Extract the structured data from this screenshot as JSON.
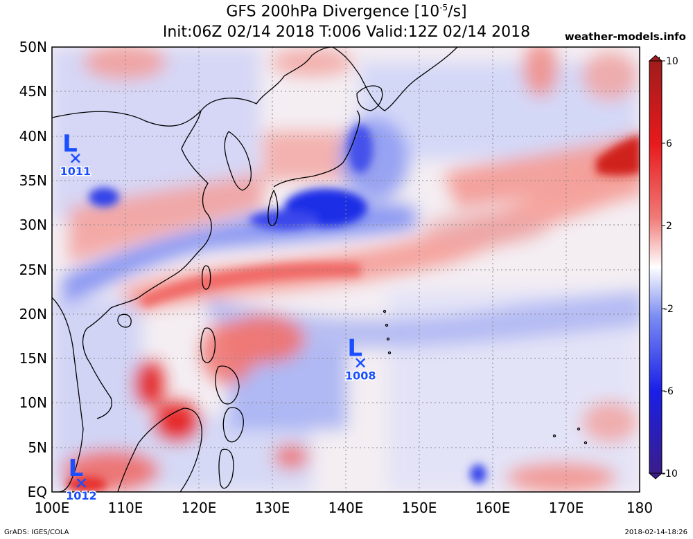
{
  "header": {
    "title_main": "GFS 200hPa Divergence [10",
    "title_exp": "-5",
    "title_unit": "/s]",
    "subtitle": "Init:06Z 02/14 2018 T:006 Valid:12Z 02/14 2018",
    "site": "weather-models.info"
  },
  "footer": {
    "credit": "GrADS: IGES/COLA",
    "timestamp": "2018-02-14-18:26"
  },
  "map": {
    "lon_labels": [
      "100E",
      "110E",
      "120E",
      "130E",
      "140E",
      "150E",
      "160E",
      "170E",
      "180"
    ],
    "lat_labels": [
      "50N",
      "45N",
      "40N",
      "35N",
      "30N",
      "25N",
      "20N",
      "15N",
      "10N",
      "5N",
      "EQ"
    ],
    "lows": [
      {
        "letter": "L",
        "pressure": "1011",
        "lon": 103.2,
        "lat": 37.5
      },
      {
        "letter": "L",
        "pressure": "1008",
        "lon": 142.0,
        "lat": 14.5
      },
      {
        "letter": "L",
        "pressure": "1012",
        "lon": 104.0,
        "lat": 1.0
      }
    ]
  },
  "colorbar": {
    "labels": [
      "10",
      "6",
      "2",
      "-2",
      "-6",
      "-10"
    ],
    "top_color": "#b8231f",
    "mid_color": "#ffffff",
    "bottom_color": "#3a1d8a"
  },
  "colors": {
    "positive": "#e8262a",
    "negative": "#2a3df0",
    "low_marker": "#1a4fff"
  }
}
